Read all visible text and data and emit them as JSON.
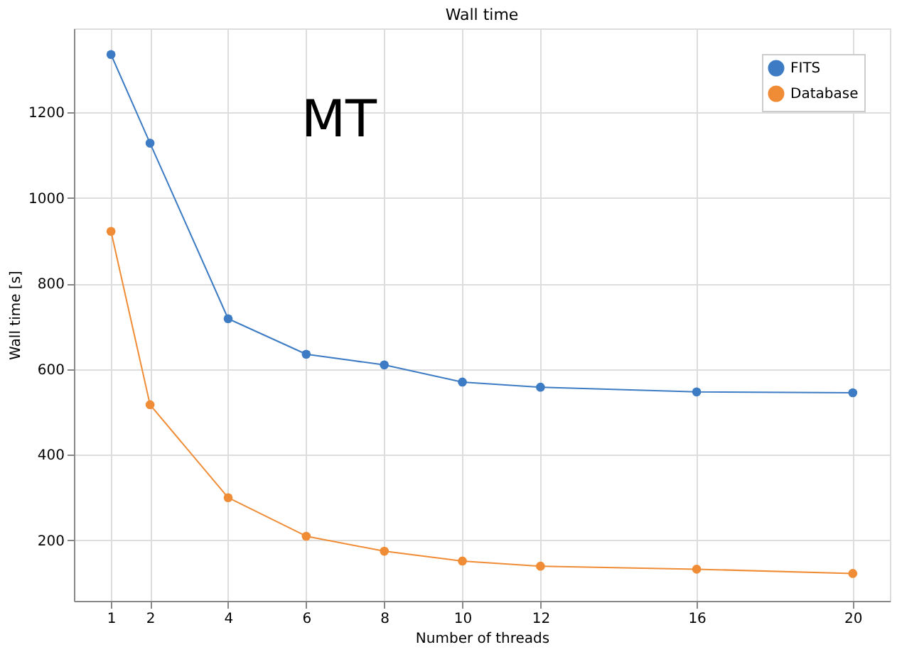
{
  "chart_data": {
    "type": "line",
    "title": "Wall time",
    "xlabel": "Number of threads",
    "ylabel": "Wall time [s]",
    "x": [
      1,
      2,
      4,
      6,
      8,
      10,
      12,
      16,
      20
    ],
    "series": [
      {
        "name": "FITS",
        "color": "#3d7cc4",
        "values": [
          1335,
          1128,
          718,
          635,
          610,
          570,
          558,
          547,
          545
        ]
      },
      {
        "name": "Database",
        "color": "#f08c35",
        "values": [
          922,
          517,
          300,
          210,
          175,
          152,
          140,
          133,
          123
        ]
      }
    ],
    "xlim": [
      0.05,
      20.95
    ],
    "xticks": [
      1,
      2,
      4,
      6,
      8,
      10,
      12,
      16,
      20
    ],
    "ylim": [
      59,
      1396
    ],
    "yticks": [
      200,
      400,
      600,
      800,
      1000,
      1200
    ],
    "annotations": [
      "MT"
    ],
    "grid": true,
    "legend": "top right",
    "marker": "circle",
    "line_style": "solid"
  }
}
